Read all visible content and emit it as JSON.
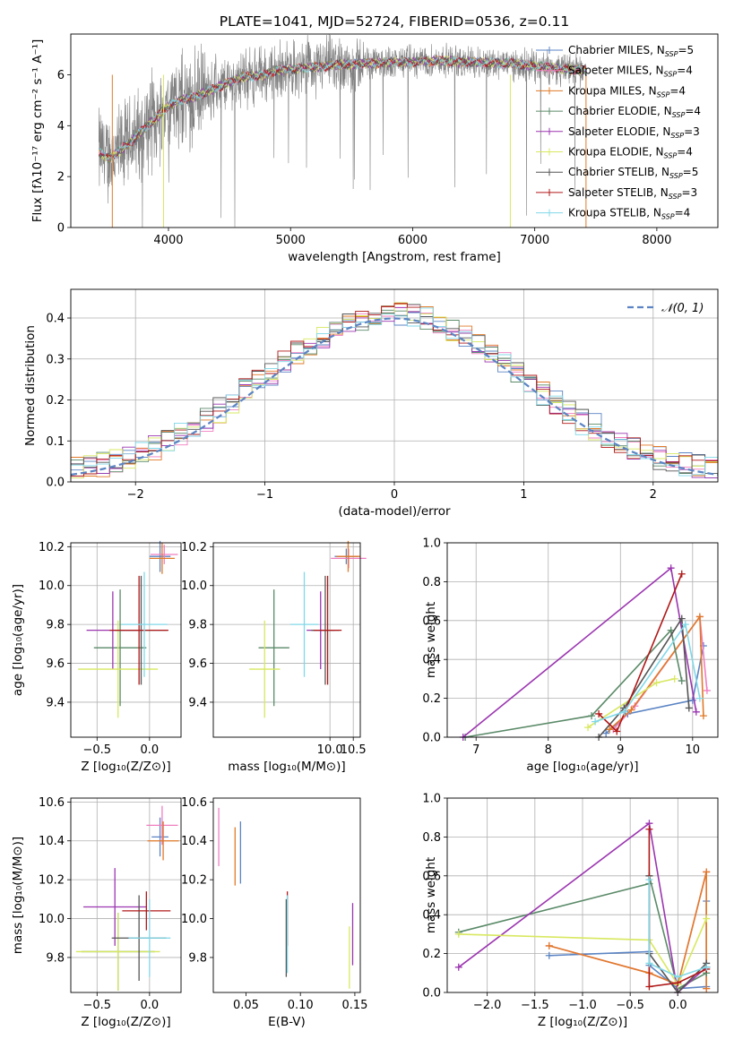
{
  "chart_data": [
    {
      "id": "spectrum",
      "type": "line",
      "title": "PLATE=1041, MJD=52724, FIBERID=0536, z=0.11",
      "xlabel": "wavelength [Angstrom, rest frame]",
      "ylabel": "Flux [fλ10⁻¹⁷ erg cm⁻² s⁻¹ A⁻¹]",
      "xlim": [
        3200,
        8500
      ],
      "ylim": [
        0,
        7.6
      ],
      "xticks": [
        "4000",
        "5000",
        "6000",
        "7000",
        "8000"
      ],
      "yticks": [
        "0",
        "2",
        "4",
        "6"
      ],
      "grid": false,
      "legend_placement": "upper-right",
      "data_series": [
        {
          "name": "data",
          "color": "#808080",
          "x": [
            3430,
            3500,
            3600,
            3700,
            3800,
            3900,
            4000,
            4100,
            4200,
            4300,
            4400,
            4500,
            4600,
            4700,
            4800,
            4900,
            5000,
            5100,
            5200,
            5300,
            5400,
            5500,
            5600,
            5700,
            5800,
            5900,
            6000,
            6100,
            6200,
            6300,
            6400,
            6500,
            6600,
            6700,
            6800,
            6900,
            7000,
            7100,
            7200,
            7300,
            7400
          ],
          "y": [
            3.0,
            2.7,
            3.0,
            3.4,
            3.9,
            4.3,
            4.8,
            5.0,
            5.1,
            5.3,
            5.5,
            5.7,
            5.9,
            5.95,
            6.0,
            6.2,
            6.2,
            6.25,
            6.3,
            6.35,
            6.4,
            6.4,
            6.45,
            6.45,
            6.5,
            6.5,
            6.5,
            6.55,
            6.55,
            6.55,
            6.5,
            6.5,
            6.5,
            6.45,
            6.45,
            6.4,
            6.35,
            6.3,
            6.25,
            6.2,
            6.2
          ]
        }
      ],
      "series": [
        {
          "name": "Chabrier MILES, N_SSP=5",
          "name_main": "Chabrier MILES, N",
          "name_sub": "SSP",
          "name_tail": "=5",
          "color": "#5b84c4"
        },
        {
          "name": "Salpeter MILES, N_SSP=4",
          "name_main": "Salpeter MILES, N",
          "name_sub": "SSP",
          "name_tail": "=4",
          "color": "#f07ec0"
        },
        {
          "name": "Kroupa MILES, N_SSP=4",
          "name_main": "Kroupa MILES, N",
          "name_sub": "SSP",
          "name_tail": "=4",
          "color": "#e07a28"
        },
        {
          "name": "Chabrier ELODIE, N_SSP=4",
          "name_main": "Chabrier ELODIE, N",
          "name_sub": "SSP",
          "name_tail": "=4",
          "color": "#5a8a68"
        },
        {
          "name": "Salpeter ELODIE, N_SSP=3",
          "name_main": "Salpeter ELODIE, N",
          "name_sub": "SSP",
          "name_tail": "=3",
          "color": "#9b36b0"
        },
        {
          "name": "Kroupa ELODIE, N_SSP=4",
          "name_main": "Kroupa ELODIE, N",
          "name_sub": "SSP",
          "name_tail": "=4",
          "color": "#d8e860"
        },
        {
          "name": "Chabrier STELIB, N_SSP=5",
          "name_main": "Chabrier STELIB, N",
          "name_sub": "SSP",
          "name_tail": "=5",
          "color": "#555555"
        },
        {
          "name": "Salpeter STELIB, N_SSP=3",
          "name_main": "Salpeter STELIB, N",
          "name_sub": "SSP",
          "name_tail": "=3",
          "color": "#b01818"
        },
        {
          "name": "Kroupa STELIB, N_SSP=4",
          "name_main": "Kroupa STELIB, N",
          "name_sub": "SSP",
          "name_tail": "=4",
          "color": "#80d8e8"
        }
      ]
    },
    {
      "id": "residuals",
      "type": "histogram",
      "xlabel": "(data-model)/error",
      "ylabel": "Normed distribution",
      "xlim": [
        -2.5,
        2.5
      ],
      "ylim": [
        0,
        0.47
      ],
      "xticks": [
        "−2",
        "−1",
        "0",
        "1",
        "2"
      ],
      "yticks": [
        "0.0",
        "0.1",
        "0.2",
        "0.3",
        "0.4"
      ],
      "grid": true,
      "legend_placement": "upper-right",
      "legend_label": "𝒩(0, 1)",
      "gaussian": {
        "mean": 0,
        "sigma": 1,
        "color": "#5b84c4"
      },
      "bin_width": 0.1
    },
    {
      "id": "z_age",
      "type": "scatter-errorbar",
      "xlabel": "Z [log₁₀(Z/Z⊙)]",
      "ylabel": "age  [log₁₀(age/yr)]",
      "xlim": [
        -0.75,
        0.3
      ],
      "ylim": [
        9.22,
        10.22
      ],
      "xticks": [
        "−0.5",
        "0.0"
      ],
      "yticks": [
        "9.4",
        "9.6",
        "9.8",
        "10.0",
        "10.2"
      ],
      "grid": true,
      "points": [
        {
          "series": 0,
          "x": 0.1,
          "y": 10.15,
          "xerr": 0.1,
          "yerr": 0.08
        },
        {
          "series": 1,
          "x": 0.14,
          "y": 10.16,
          "xerr": 0.13,
          "yerr": 0.05
        },
        {
          "series": 2,
          "x": 0.12,
          "y": 10.14,
          "xerr": 0.12,
          "yerr": 0.08
        },
        {
          "series": 3,
          "x": -0.28,
          "y": 9.68,
          "xerr": 0.25,
          "yerr": 0.3
        },
        {
          "series": 4,
          "x": -0.35,
          "y": 9.77,
          "xerr": 0.25,
          "yerr": 0.2
        },
        {
          "series": 5,
          "x": -0.3,
          "y": 9.57,
          "xerr": 0.38,
          "yerr": 0.25
        },
        {
          "series": 6,
          "x": -0.08,
          "y": 9.77,
          "xerr": 0.25,
          "yerr": 0.28
        },
        {
          "series": 7,
          "x": -0.1,
          "y": 9.77,
          "xerr": 0.28,
          "yerr": 0.28
        },
        {
          "series": 8,
          "x": -0.05,
          "y": 9.8,
          "xerr": 0.22,
          "yerr": 0.27
        }
      ]
    },
    {
      "id": "mass_age",
      "type": "scatter-errorbar",
      "xlabel": "mass [log₁₀(M/M⊙)]",
      "ylabel": "",
      "xlim": [
        7.5,
        10.65
      ],
      "ylim": [
        9.22,
        10.22
      ],
      "xticks": [
        "10.0",
        "10.5"
      ],
      "yticks": [
        "9.4",
        "9.6",
        "9.8",
        "10.0",
        "10.2"
      ],
      "grid": true,
      "points": [
        {
          "series": 0,
          "x": 10.35,
          "y": 10.15,
          "xerr": 0.25,
          "yerr": 0.04
        },
        {
          "series": 1,
          "x": 10.4,
          "y": 10.14,
          "xerr": 0.38,
          "yerr": 0.05
        },
        {
          "series": 2,
          "x": 10.39,
          "y": 10.15,
          "xerr": 0.25,
          "yerr": 0.08
        },
        {
          "series": 3,
          "x": 8.8,
          "y": 9.68,
          "xerr": 0.33,
          "yerr": 0.3
        },
        {
          "series": 4,
          "x": 9.8,
          "y": 9.77,
          "xerr": 0.3,
          "yerr": 0.2
        },
        {
          "series": 5,
          "x": 8.6,
          "y": 9.57,
          "xerr": 0.33,
          "yerr": 0.25
        },
        {
          "series": 6,
          "x": 9.9,
          "y": 9.77,
          "xerr": 0.3,
          "yerr": 0.28
        },
        {
          "series": 7,
          "x": 9.95,
          "y": 9.77,
          "xerr": 0.3,
          "yerr": 0.28
        },
        {
          "series": 8,
          "x": 9.45,
          "y": 9.8,
          "xerr": 0.3,
          "yerr": 0.27
        }
      ]
    },
    {
      "id": "age_weight",
      "type": "line",
      "xlabel": "age  [log₁₀(age/yr)]",
      "ylabel": "mass weight",
      "xlim": [
        6.6,
        10.35
      ],
      "ylim": [
        0,
        1
      ],
      "xticks": [
        "7",
        "8",
        "9",
        "10"
      ],
      "yticks": [
        "0.0",
        "0.2",
        "0.4",
        "0.6",
        "0.8",
        "1.0"
      ],
      "grid": true,
      "series_points": [
        {
          "series": 0,
          "x": [
            8.8,
            9.1,
            10.0,
            10.15
          ],
          "y": [
            0.02,
            0.12,
            0.19,
            0.47
          ]
        },
        {
          "series": 1,
          "x": [
            8.9,
            9.2,
            10.1,
            10.2
          ],
          "y": [
            0.04,
            0.16,
            0.62,
            0.24
          ]
        },
        {
          "series": 2,
          "x": [
            8.85,
            9.15,
            10.1,
            10.15
          ],
          "y": [
            0.04,
            0.14,
            0.62,
            0.11
          ]
        },
        {
          "series": 3,
          "x": [
            6.85,
            8.6,
            9.7,
            9.85
          ],
          "y": [
            0.0,
            0.11,
            0.55,
            0.29
          ]
        },
        {
          "series": 4,
          "x": [
            6.82,
            9.7,
            10.05
          ],
          "y": [
            0.0,
            0.87,
            0.13
          ]
        },
        {
          "series": 5,
          "x": [
            8.55,
            9.5,
            9.75
          ],
          "y": [
            0.05,
            0.28,
            0.3
          ]
        },
        {
          "series": 6,
          "x": [
            8.7,
            9.05,
            9.85,
            9.95
          ],
          "y": [
            0.0,
            0.15,
            0.61,
            0.15
          ]
        },
        {
          "series": 7,
          "x": [
            8.7,
            8.95,
            9.85
          ],
          "y": [
            0.12,
            0.03,
            0.84
          ]
        },
        {
          "series": 8,
          "x": [
            8.65,
            9.05,
            9.9,
            10.1
          ],
          "y": [
            0.08,
            0.13,
            0.58,
            0.2
          ]
        }
      ]
    },
    {
      "id": "z_mass",
      "type": "scatter-errorbar",
      "xlabel": "Z [log₁₀(Z/Z⊙)]",
      "ylabel": "mass [log₁₀(M/M⊙)]",
      "xlim": [
        -0.75,
        0.3
      ],
      "ylim": [
        9.62,
        10.62
      ],
      "xticks": [
        "−0.5",
        "0.0"
      ],
      "yticks": [
        "9.8",
        "10.0",
        "10.2",
        "10.4",
        "10.6"
      ],
      "grid": true,
      "points": [
        {
          "series": 0,
          "x": 0.1,
          "y": 10.42,
          "xerr": 0.08,
          "yerr": 0.1
        },
        {
          "series": 1,
          "x": 0.12,
          "y": 10.48,
          "xerr": 0.15,
          "yerr": 0.1
        },
        {
          "series": 2,
          "x": 0.13,
          "y": 10.4,
          "xerr": 0.15,
          "yerr": 0.1
        },
        {
          "series": 3,
          "x": -0.3,
          "y": 9.83,
          "xerr": 0.35,
          "yerr": 0.2
        },
        {
          "series": 4,
          "x": -0.33,
          "y": 10.06,
          "xerr": 0.3,
          "yerr": 0.2
        },
        {
          "series": 5,
          "x": -0.3,
          "y": 9.83,
          "xerr": 0.4,
          "yerr": 0.2
        },
        {
          "series": 6,
          "x": -0.1,
          "y": 9.9,
          "xerr": 0.26,
          "yerr": 0.22
        },
        {
          "series": 7,
          "x": -0.03,
          "y": 10.04,
          "xerr": 0.23,
          "yerr": 0.1
        },
        {
          "series": 8,
          "x": 0.0,
          "y": 9.9,
          "xerr": 0.2,
          "yerr": 0.2
        }
      ]
    },
    {
      "id": "ebv_mass",
      "type": "scatter-errorbar",
      "xlabel": "E(B-V)",
      "ylabel": "",
      "xlim": [
        0.02,
        0.155
      ],
      "ylim": [
        9.62,
        10.62
      ],
      "xticks": [
        "0.05",
        "0.10",
        "0.15"
      ],
      "yticks": [
        "9.8",
        "10.0",
        "10.2",
        "10.4",
        "10.6"
      ],
      "grid": false,
      "points": [
        {
          "series": 1,
          "x": 0.025,
          "y": 10.42,
          "xerr": 0,
          "yerr": 0.15
        },
        {
          "series": 2,
          "x": 0.04,
          "y": 10.32,
          "xerr": 0,
          "yerr": 0.15
        },
        {
          "series": 0,
          "x": 0.045,
          "y": 10.34,
          "xerr": 0,
          "yerr": 0.16
        },
        {
          "series": 7,
          "x": 0.088,
          "y": 10.0,
          "xerr": 0,
          "yerr": 0.14
        },
        {
          "series": 6,
          "x": 0.087,
          "y": 9.9,
          "xerr": 0,
          "yerr": 0.2
        },
        {
          "series": 8,
          "x": 0.088,
          "y": 9.92,
          "xerr": 0,
          "yerr": 0.2
        },
        {
          "series": 5,
          "x": 0.145,
          "y": 9.8,
          "xerr": 0,
          "yerr": 0.16
        },
        {
          "series": 4,
          "x": 0.148,
          "y": 9.92,
          "xerr": 0,
          "yerr": 0.16
        }
      ]
    },
    {
      "id": "z_weight",
      "type": "line",
      "xlabel": "Z [log₁₀(Z/Z⊙)]",
      "ylabel": "mass weight",
      "xlim": [
        -2.42,
        0.42
      ],
      "ylim": [
        0,
        1
      ],
      "xticks": [
        "−2.0",
        "−1.5",
        "−1.0",
        "−0.5",
        "0.0"
      ],
      "yticks": [
        "0.0",
        "0.2",
        "0.4",
        "0.6",
        "0.8",
        "1.0"
      ],
      "grid": true,
      "series_points": [
        {
          "series": 0,
          "x": [
            -1.35,
            -0.3,
            -0.3,
            0.0,
            0.3,
            0.3
          ],
          "y": [
            0.19,
            0.21,
            0.14,
            0.02,
            0.03,
            0.47
          ]
        },
        {
          "series": 1,
          "x": [
            -1.35,
            -0.3,
            0.0,
            0.3,
            0.3
          ],
          "y": [
            0.24,
            0.1,
            0.04,
            0.62,
            0.02
          ]
        },
        {
          "series": 2,
          "x": [
            -1.35,
            -0.3,
            0.0,
            0.3,
            0.3
          ],
          "y": [
            0.24,
            0.1,
            0.04,
            0.62,
            0.02
          ]
        },
        {
          "series": 3,
          "x": [
            -2.3,
            -0.3,
            -0.3,
            0.0,
            0.3
          ],
          "y": [
            0.31,
            0.56,
            0.6,
            0.02,
            0.1
          ]
        },
        {
          "series": 4,
          "x": [
            -2.3,
            -0.3,
            0.0,
            0.3
          ],
          "y": [
            0.13,
            0.87,
            0.0,
            0.13
          ]
        },
        {
          "series": 5,
          "x": [
            -2.3,
            -0.3,
            0.0,
            0.3
          ],
          "y": [
            0.3,
            0.27,
            0.04,
            0.38
          ]
        },
        {
          "series": 6,
          "x": [
            -0.3,
            -0.3,
            0.0,
            0.3,
            0.3
          ],
          "y": [
            0.6,
            0.2,
            0.0,
            0.15,
            0.13
          ]
        },
        {
          "series": 7,
          "x": [
            -0.3,
            -0.3,
            0.0,
            0.3
          ],
          "y": [
            0.84,
            0.03,
            0.05,
            0.12
          ]
        },
        {
          "series": 8,
          "x": [
            -0.3,
            -0.3,
            0.0,
            0.3
          ],
          "y": [
            0.58,
            0.15,
            0.08,
            0.13
          ]
        }
      ]
    }
  ]
}
